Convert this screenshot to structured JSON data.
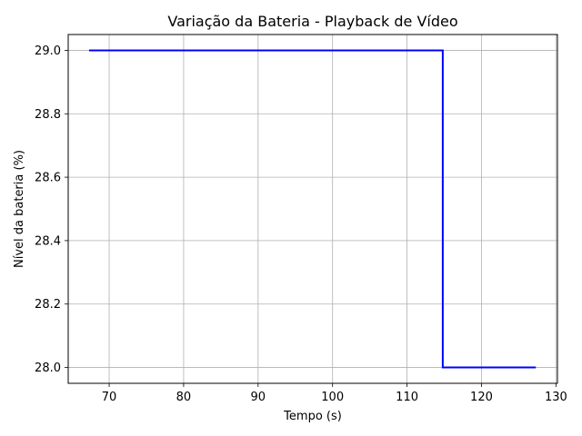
{
  "chart_data": {
    "type": "line",
    "title": "Variação da Bateria - Playback de Vídeo",
    "xlabel": "Tempo (s)",
    "ylabel": "Nível da bateria (%)",
    "xlim": [
      64.5,
      130.2
    ],
    "ylim": [
      27.95,
      29.05
    ],
    "xticks": [
      70,
      80,
      90,
      100,
      110,
      120,
      130
    ],
    "yticks": [
      28.0,
      28.2,
      28.4,
      28.6,
      28.8,
      29.0
    ],
    "ytick_labels": [
      "28.0",
      "28.2",
      "28.4",
      "28.6",
      "28.8",
      "29.0"
    ],
    "grid": true,
    "step": "post",
    "series": [
      {
        "color": "#0000ff",
        "x": [
          67.3,
          114.8,
          114.8,
          127.3
        ],
        "y": [
          29.0,
          29.0,
          28.0,
          28.0
        ]
      }
    ]
  }
}
